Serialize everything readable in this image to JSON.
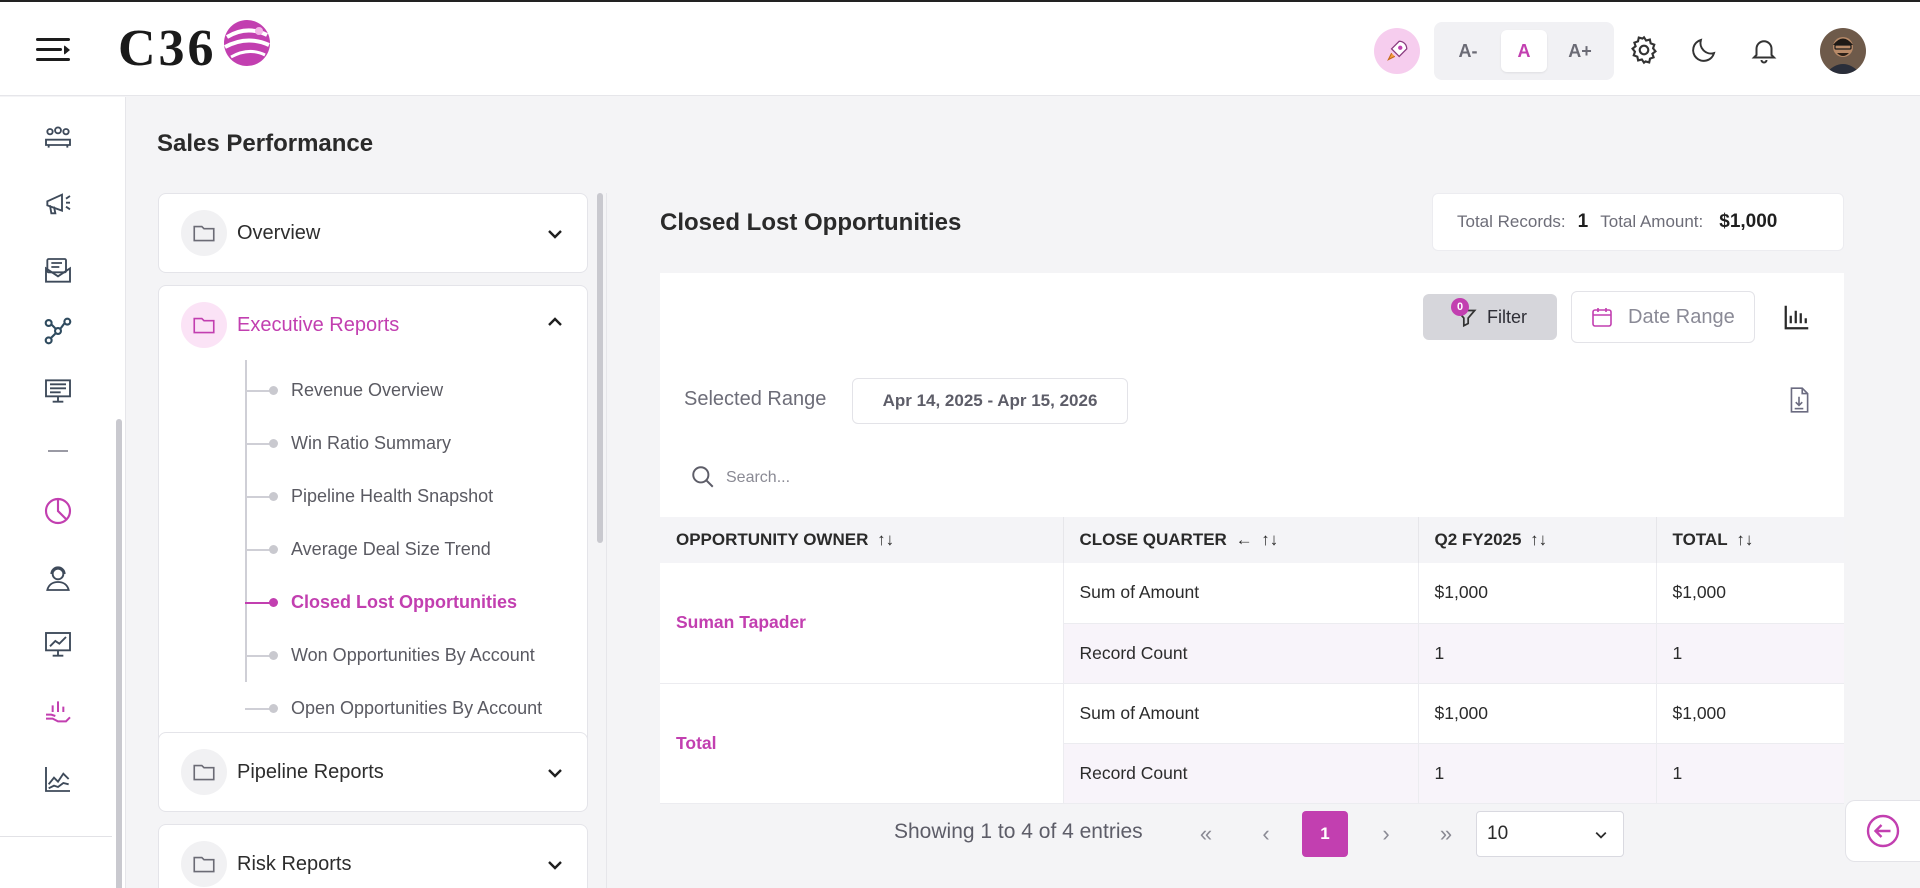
{
  "app": {
    "logo_text": "C36",
    "font_controls": {
      "decrease": "A-",
      "normal": "A",
      "increase": "A+"
    }
  },
  "page": {
    "title": "Sales Performance"
  },
  "sections": [
    {
      "title": "Overview",
      "expanded": false
    },
    {
      "title": "Executive Reports",
      "expanded": true,
      "items": [
        "Revenue Overview",
        "Win Ratio Summary",
        "Pipeline Health Snapshot",
        "Average Deal Size Trend",
        "Closed Lost Opportunities",
        "Won Opportunities By Account",
        "Open Opportunities By Account"
      ],
      "active_item": "Closed Lost Opportunities"
    },
    {
      "title": "Pipeline Reports",
      "expanded": false
    },
    {
      "title": "Risk Reports",
      "expanded": false
    }
  ],
  "report": {
    "title": "Closed Lost Opportunities",
    "totals": {
      "records_label": "Total Records:",
      "records_value": "1",
      "amount_label": "Total Amount:",
      "amount_value": "$1,000"
    },
    "filter_label": "Filter",
    "filter_count": "0",
    "date_range_label": "Date Range",
    "selected_range_label": "Selected Range",
    "selected_range_value": "Apr 14, 2025 - Apr 15, 2026",
    "search_placeholder": "Search...",
    "columns": [
      "OPPORTUNITY OWNER",
      "CLOSE QUARTER",
      "Q2 FY2025",
      "TOTAL"
    ],
    "groups": [
      {
        "owner": "Suman Tapader",
        "rows": [
          {
            "measure": "Sum of Amount",
            "q2": "$1,000",
            "total": "$1,000"
          },
          {
            "measure": "Record Count",
            "q2": "1",
            "total": "1"
          }
        ]
      },
      {
        "owner": "Total",
        "rows": [
          {
            "measure": "Sum of Amount",
            "q2": "$1,000",
            "total": "$1,000"
          },
          {
            "measure": "Record Count",
            "q2": "1",
            "total": "1"
          }
        ]
      }
    ]
  },
  "pagination": {
    "info": "Showing 1 to 4 of 4 entries",
    "first": "«",
    "prev": "‹",
    "current_page": "1",
    "next": "›",
    "last": "»",
    "page_size": "10"
  },
  "colors": {
    "accent": "#c23fb0",
    "accent_soft": "#fbe3f6",
    "text": "#2b2b2b"
  },
  "icons": {
    "top": [
      "hamburger-icon",
      "rocket-icon",
      "settings-gear-icon",
      "moon-icon",
      "bell-icon",
      "user-avatar"
    ],
    "rail": [
      "team-icon",
      "megaphone-icon",
      "mail-icon",
      "network-icon",
      "presentation-icon",
      "minus-icon",
      "pie-chart-icon",
      "support-agent-icon",
      "chart-board-icon",
      "hand-chart-icon",
      "line-chart-icon"
    ]
  }
}
